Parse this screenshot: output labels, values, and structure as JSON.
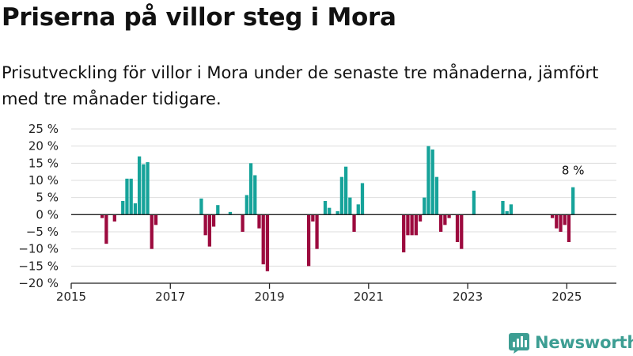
{
  "header": {
    "title": "Priserna på villor steg i Mora",
    "subtitle": "Prisutveckling för villor i Mora under de senaste tre månaderna, jämfört med tre månader tidigare."
  },
  "brand": {
    "name": "Newsworthy",
    "icon": "newsworthy-logo-icon",
    "color": "#3d9e93"
  },
  "colors": {
    "positive": "#16a39a",
    "negative": "#9c0a3e",
    "grid": "#dddddd",
    "axis": "#222222"
  },
  "chart_data": {
    "type": "bar",
    "title": "Priserna på villor steg i Mora",
    "xlabel": "",
    "ylabel": "",
    "ylim": [
      -20,
      25
    ],
    "y_ticks": [
      25,
      20,
      15,
      10,
      5,
      0,
      -5,
      -10,
      -15,
      -20
    ],
    "y_tick_labels": [
      "25 %",
      "20 %",
      "15 %",
      "10 %",
      "5 %",
      "0 %",
      "−5 %",
      "−10 %",
      "−15 %",
      "−20 %"
    ],
    "x_ticks": [
      "2015",
      "2017",
      "2019",
      "2021",
      "2023",
      "2025"
    ],
    "x_range": [
      "2015-01",
      "2025-12"
    ],
    "grid": true,
    "annotation": {
      "x": "2025-02",
      "text": "8 %"
    },
    "categories": [
      "2015-08",
      "2015-09",
      "2015-10",
      "2015-11",
      "2015-12",
      "2016-01",
      "2016-02",
      "2016-03",
      "2016-04",
      "2016-05",
      "2016-06",
      "2016-07",
      "2016-08",
      "2016-09",
      "2016-10",
      "2016-11",
      "2016-12",
      "2017-01",
      "2017-02",
      "2017-03",
      "2017-04",
      "2017-05",
      "2017-06",
      "2017-07",
      "2017-08",
      "2017-09",
      "2017-10",
      "2017-11",
      "2017-12",
      "2018-01",
      "2018-02",
      "2018-03",
      "2018-04",
      "2018-05",
      "2018-06",
      "2018-07",
      "2018-08",
      "2018-09",
      "2018-10",
      "2018-11",
      "2018-12",
      "2019-01",
      "2019-02",
      "2019-03",
      "2019-04",
      "2019-05",
      "2019-06",
      "2019-07",
      "2019-08",
      "2019-09",
      "2019-10",
      "2019-11",
      "2019-12",
      "2020-01",
      "2020-02",
      "2020-03",
      "2020-04",
      "2020-05",
      "2020-06",
      "2020-07",
      "2020-08",
      "2020-09",
      "2020-10",
      "2020-11",
      "2020-12",
      "2021-01",
      "2021-02",
      "2021-03",
      "2021-04",
      "2021-05",
      "2021-06",
      "2021-07",
      "2021-08",
      "2021-09",
      "2021-10",
      "2021-11",
      "2021-12",
      "2022-01",
      "2022-02",
      "2022-03",
      "2022-04",
      "2022-05",
      "2022-06",
      "2022-07",
      "2022-08",
      "2022-09",
      "2022-10",
      "2022-11",
      "2022-12",
      "2023-01",
      "2023-02",
      "2023-03",
      "2023-04",
      "2023-05",
      "2023-06",
      "2023-07",
      "2023-08",
      "2023-09",
      "2023-10",
      "2023-11",
      "2023-12",
      "2024-01",
      "2024-02",
      "2024-03",
      "2024-04",
      "2024-05",
      "2024-06",
      "2024-07",
      "2024-08",
      "2024-09",
      "2024-10",
      "2024-11",
      "2024-12",
      "2025-01",
      "2025-02"
    ],
    "values": [
      -1,
      -8.5,
      null,
      -2,
      null,
      4,
      10.5,
      10.5,
      3.3,
      17,
      14.7,
      15.3,
      -10,
      -3,
      null,
      null,
      null,
      null,
      null,
      null,
      null,
      null,
      null,
      null,
      4.7,
      -6,
      -9.3,
      -3.5,
      2.8,
      null,
      null,
      0.8,
      null,
      null,
      -5,
      5.7,
      15,
      11.5,
      -4,
      -14.5,
      -16.5,
      null,
      null,
      null,
      null,
      null,
      null,
      null,
      null,
      null,
      -15,
      -2,
      -10,
      null,
      4,
      2,
      null,
      1,
      11,
      14,
      5,
      -5,
      3,
      9.2,
      null,
      null,
      null,
      null,
      null,
      null,
      null,
      null,
      null,
      -11,
      -6,
      -6,
      -6,
      -2,
      5,
      20,
      19,
      11,
      -5,
      -3,
      -1,
      null,
      -8,
      -10,
      null,
      null,
      7,
      null,
      null,
      null,
      null,
      null,
      null,
      4,
      1,
      3,
      null,
      null,
      null,
      null,
      null,
      null,
      null,
      null,
      null,
      -1,
      -4,
      -5,
      -3,
      -8,
      8
    ]
  }
}
